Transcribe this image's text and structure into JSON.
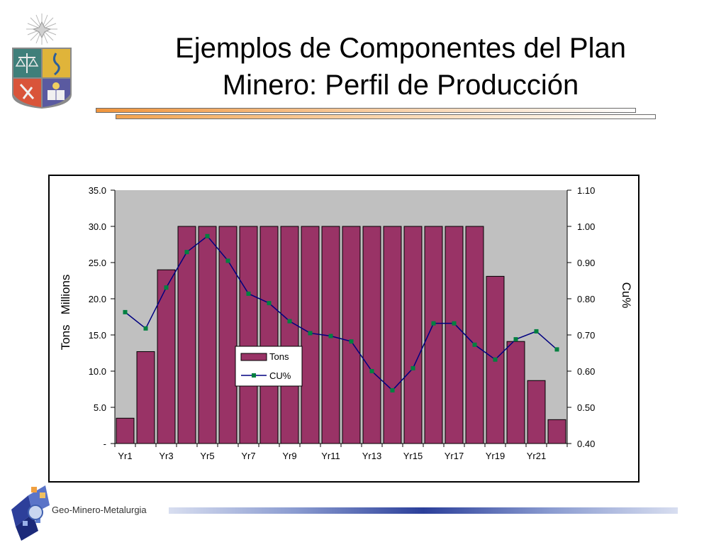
{
  "slide": {
    "title_line1": "Ejemplos de Componentes del Plan",
    "title_line2": "Minero: Perfil de Producción",
    "footer": "Geo-Minero-Metalurgia"
  },
  "colors": {
    "bar": "#993366",
    "line": "#000080",
    "marker": "#008040",
    "plot_bg": "#c0c0c0",
    "accent": "#f0953d"
  },
  "chart_data": {
    "type": "bar",
    "categories": [
      "Yr1",
      "Yr2",
      "Yr3",
      "Yr4",
      "Yr5",
      "Yr6",
      "Yr7",
      "Yr8",
      "Yr9",
      "Yr10",
      "Yr11",
      "Yr12",
      "Yr13",
      "Yr14",
      "Yr15",
      "Yr16",
      "Yr17",
      "Yr18",
      "Yr19",
      "Yr20",
      "Yr21",
      "Yr22"
    ],
    "x_tick_labels": [
      "Yr1",
      "Yr3",
      "Yr5",
      "Yr7",
      "Yr9",
      "Yr11",
      "Yr13",
      "Yr15",
      "Yr17",
      "Yr19",
      "Yr21"
    ],
    "series": [
      {
        "name": "Tons",
        "type": "bar",
        "axis": "left",
        "values": [
          3.5,
          12.7,
          24.0,
          30.0,
          30.0,
          30.0,
          30.0,
          30.0,
          30.0,
          30.0,
          30.0,
          30.0,
          30.0,
          30.0,
          30.0,
          30.0,
          30.0,
          30.0,
          23.1,
          14.1,
          8.7,
          3.3
        ]
      },
      {
        "name": "CU%",
        "type": "line",
        "axis": "right",
        "values": [
          0.763,
          0.718,
          0.831,
          0.929,
          0.973,
          0.905,
          0.814,
          0.788,
          0.738,
          0.705,
          0.697,
          0.682,
          0.6,
          0.547,
          0.608,
          0.732,
          0.732,
          0.673,
          0.632,
          0.688,
          0.71,
          0.66
        ]
      }
    ],
    "left_axis": {
      "label": "Tons   Millions",
      "ylim": [
        0,
        35
      ],
      "ticks": [
        "-",
        "5.0",
        "10.0",
        "15.0",
        "20.0",
        "25.0",
        "30.0",
        "35.0"
      ]
    },
    "right_axis": {
      "label": "Cu%",
      "ylim": [
        0.4,
        1.1
      ],
      "ticks": [
        "0.40",
        "0.50",
        "0.60",
        "0.70",
        "0.80",
        "0.90",
        "1.00",
        "1.10"
      ]
    },
    "legend": {
      "placement": "center-left",
      "entries": [
        "Tons",
        "CU%"
      ]
    },
    "grid": false
  }
}
